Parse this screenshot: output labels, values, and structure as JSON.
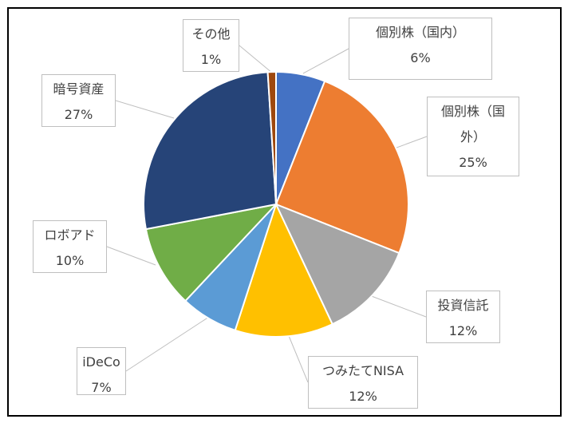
{
  "chart_data": {
    "type": "pie",
    "title": "",
    "categories": [
      "個別株（国内）",
      "個別株（国外）",
      "投資信託",
      "つみたてNISA",
      "iDeCo",
      "ロボアド",
      "暗号資産",
      "その他"
    ],
    "label_lines": [
      [
        "個別株（国内）"
      ],
      [
        "個別株（国",
        "外）"
      ],
      [
        "投資信託"
      ],
      [
        "つみたてNISA"
      ],
      [
        "iDeCo"
      ],
      [
        "ロボアド"
      ],
      [
        "暗号資産"
      ],
      [
        "その他"
      ]
    ],
    "values": [
      6,
      25,
      12,
      12,
      7,
      10,
      27,
      1
    ],
    "percent_labels": [
      "6%",
      "25%",
      "12%",
      "12%",
      "7%",
      "10%",
      "27%",
      "1%"
    ],
    "colors": [
      "#4472C4",
      "#ED7D31",
      "#A5A5A5",
      "#FFC000",
      "#5B9BD5",
      "#70AD47",
      "#264478",
      "#9E480E"
    ],
    "start_angle_deg": 0,
    "direction": "clockwise",
    "legend": "none",
    "data_labels": "callouts"
  }
}
